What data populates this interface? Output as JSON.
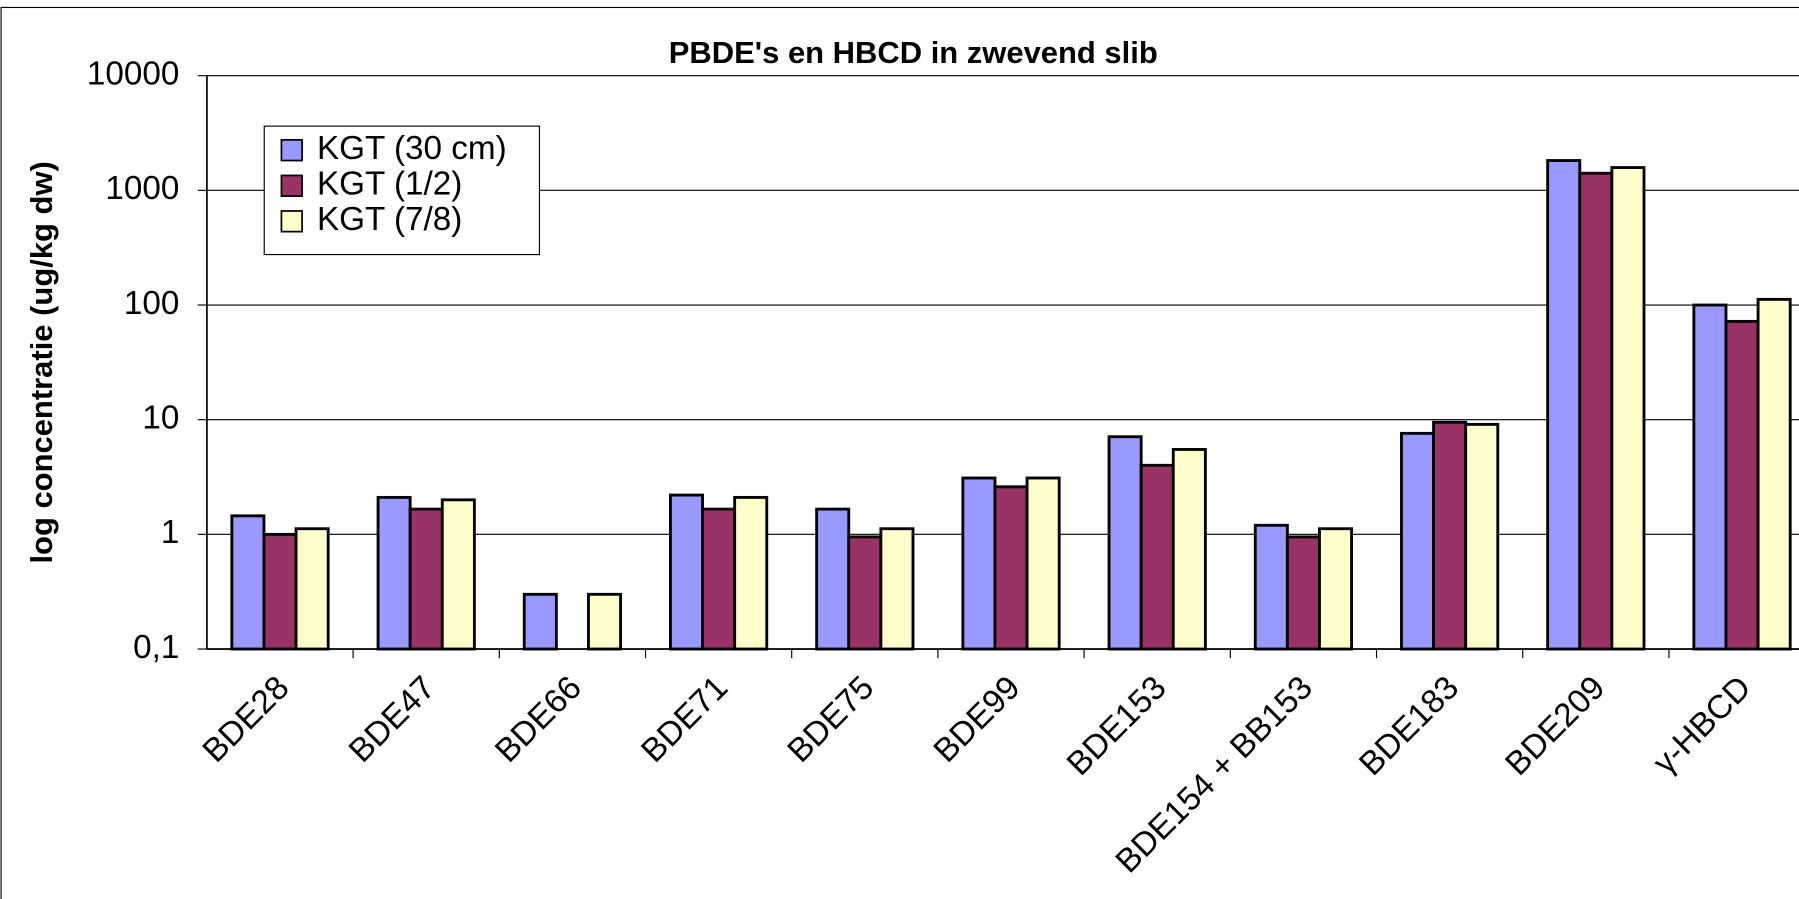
{
  "chart_data": {
    "type": "bar",
    "title": "PBDE's en HBCD in zwevend slib",
    "y_label": "log concentratie (ug/kg dw)",
    "categories": [
      "BDE28",
      "BDE47",
      "BDE66",
      "BDE71",
      "BDE75",
      "BDE99",
      "BDE153",
      "BDE154 + BB153",
      "BDE183",
      "BDE209",
      "γ-HBCD"
    ],
    "series": [
      {
        "name": "KGT (30 cm)",
        "color": "#9999ff",
        "values": [
          1.45,
          2.1,
          0.3,
          2.2,
          1.66,
          3.1,
          7.1,
          1.2,
          7.6,
          1820,
          100
        ]
      },
      {
        "name": "KGT (1/2)",
        "color": "#993366",
        "values": [
          1.0,
          1.66,
          null,
          1.66,
          0.95,
          2.6,
          4.0,
          0.95,
          9.5,
          1410,
          72
        ]
      },
      {
        "name": "KGT (7/8)",
        "color": "#ffffcc",
        "values": [
          1.12,
          2.0,
          0.3,
          2.1,
          1.12,
          3.1,
          5.5,
          1.12,
          9.1,
          1580,
          112
        ]
      }
    ],
    "ylim": [
      0.1,
      10000
    ],
    "yticks": [
      {
        "value": 0.1,
        "label": "0,1"
      },
      1,
      10,
      100,
      1000,
      10000
    ],
    "log_y": true,
    "grid": true,
    "legend": "upper left"
  }
}
